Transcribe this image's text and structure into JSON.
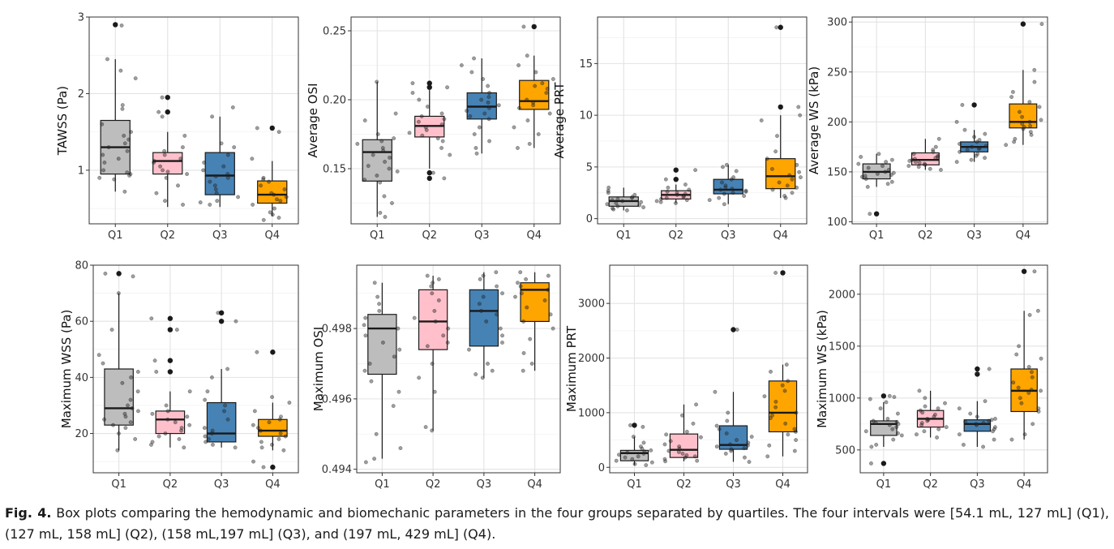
{
  "caption": {
    "label": "Fig. 4.",
    "text": "Box plots comparing the hemodynamic and biomechanic parameters in the four groups separated by quartiles. The four intervals were [54.1 mL, 127 mL] (Q1), (127 mL, 158 mL] (Q2), (158 mL,197 mL] (Q3), and (197 mL, 429 mL] (Q4)."
  },
  "colors": {
    "Q1": "#bdbdbd",
    "Q2": "#ffc0cb",
    "Q3": "#4682b4",
    "Q4": "#ffa500"
  },
  "chart_data": [
    {
      "type": "box",
      "ylabel": "TAWSS (Pa)",
      "categories": [
        "Q1",
        "Q2",
        "Q3",
        "Q4"
      ],
      "ylim": [
        0.3,
        3.0
      ],
      "yticks": [
        1,
        2,
        3
      ],
      "grid": true,
      "boxes": [
        {
          "min": 0.72,
          "q1": 0.95,
          "median": 1.3,
          "q3": 1.65,
          "max": 2.45,
          "outliers": [
            2.9
          ]
        },
        {
          "min": 0.52,
          "q1": 0.95,
          "median": 1.12,
          "q3": 1.23,
          "max": 1.5,
          "outliers": [
            1.95,
            1.76
          ]
        },
        {
          "min": 0.52,
          "q1": 0.68,
          "median": 0.93,
          "q3": 1.23,
          "max": 1.7,
          "outliers": []
        },
        {
          "min": 0.4,
          "q1": 0.57,
          "median": 0.68,
          "q3": 0.86,
          "max": 1.12,
          "outliers": [
            1.55
          ]
        }
      ],
      "points": [
        [
          2.89,
          2.45,
          2.3,
          2.2,
          1.85,
          1.8,
          1.6,
          1.5,
          1.45,
          1.4,
          1.35,
          1.3,
          1.25,
          1.2,
          1.15,
          1.1,
          1.0,
          0.97,
          0.95,
          0.93,
          0.9,
          0.88,
          0.72
        ],
        [
          1.95,
          1.76,
          1.7,
          1.45,
          1.3,
          1.25,
          1.2,
          1.15,
          1.12,
          1.1,
          1.05,
          1.0,
          0.98,
          0.95,
          0.9,
          0.8,
          0.7,
          0.6,
          0.55
        ],
        [
          1.82,
          1.7,
          1.35,
          1.3,
          1.2,
          1.1,
          1.05,
          1.0,
          0.95,
          0.92,
          0.9,
          0.85,
          0.8,
          0.75,
          0.7,
          0.65,
          0.6,
          0.58,
          0.55
        ],
        [
          1.55,
          1.5,
          1.15,
          0.9,
          0.88,
          0.85,
          0.8,
          0.75,
          0.7,
          0.68,
          0.65,
          0.62,
          0.6,
          0.55,
          0.5,
          0.45,
          0.42,
          0.38,
          0.35
        ]
      ]
    },
    {
      "type": "box",
      "ylabel": "Average OSI",
      "categories": [
        "Q1",
        "Q2",
        "Q3",
        "Q4"
      ],
      "ylim": [
        0.11,
        0.26
      ],
      "yticks": [
        0.15,
        0.2,
        0.25
      ],
      "tick_format": "2",
      "grid": true,
      "boxes": [
        {
          "min": 0.115,
          "q1": 0.141,
          "median": 0.162,
          "q3": 0.171,
          "max": 0.213,
          "outliers": []
        },
        {
          "min": 0.15,
          "q1": 0.173,
          "median": 0.181,
          "q3": 0.188,
          "max": 0.207,
          "outliers": [
            0.212,
            0.209,
            0.147,
            0.143
          ]
        },
        {
          "min": 0.161,
          "q1": 0.186,
          "median": 0.195,
          "q3": 0.205,
          "max": 0.23,
          "outliers": []
        },
        {
          "min": 0.165,
          "q1": 0.193,
          "median": 0.199,
          "q3": 0.214,
          "max": 0.232,
          "outliers": [
            0.253
          ]
        }
      ],
      "points": [
        [
          0.213,
          0.19,
          0.185,
          0.175,
          0.172,
          0.17,
          0.168,
          0.165,
          0.163,
          0.16,
          0.158,
          0.155,
          0.152,
          0.15,
          0.148,
          0.145,
          0.142,
          0.14,
          0.13,
          0.125,
          0.118,
          0.115
        ],
        [
          0.212,
          0.209,
          0.205,
          0.2,
          0.195,
          0.19,
          0.188,
          0.186,
          0.184,
          0.182,
          0.18,
          0.178,
          0.176,
          0.174,
          0.172,
          0.17,
          0.165,
          0.16,
          0.147,
          0.143
        ],
        [
          0.23,
          0.225,
          0.22,
          0.215,
          0.21,
          0.205,
          0.202,
          0.2,
          0.198,
          0.196,
          0.194,
          0.192,
          0.19,
          0.188,
          0.186,
          0.18,
          0.175,
          0.17,
          0.165,
          0.161
        ],
        [
          0.253,
          0.232,
          0.225,
          0.22,
          0.215,
          0.212,
          0.21,
          0.208,
          0.205,
          0.2,
          0.198,
          0.196,
          0.194,
          0.19,
          0.185,
          0.18,
          0.175,
          0.168,
          0.165
        ]
      ]
    },
    {
      "type": "box",
      "ylabel": "Average PRT",
      "categories": [
        "Q1",
        "Q2",
        "Q3",
        "Q4"
      ],
      "ylim": [
        -0.5,
        19.5
      ],
      "yticks": [
        0,
        5,
        10,
        15
      ],
      "grid": true,
      "boxes": [
        {
          "min": 0.8,
          "q1": 1.2,
          "median": 1.7,
          "q3": 2.1,
          "max": 3.0,
          "outliers": []
        },
        {
          "min": 1.5,
          "q1": 1.9,
          "median": 2.3,
          "q3": 2.7,
          "max": 3.3,
          "outliers": [
            4.7,
            3.8
          ]
        },
        {
          "min": 1.4,
          "q1": 2.4,
          "median": 2.8,
          "q3": 3.8,
          "max": 5.2,
          "outliers": []
        },
        {
          "min": 2.0,
          "q1": 2.9,
          "median": 4.1,
          "q3": 5.8,
          "max": 10.0,
          "outliers": [
            18.5,
            10.8
          ]
        }
      ],
      "points": [
        [
          3.0,
          2.7,
          2.5,
          2.3,
          2.1,
          2.0,
          1.9,
          1.8,
          1.7,
          1.6,
          1.5,
          1.4,
          1.3,
          1.2,
          1.1,
          1.0,
          0.9,
          0.8
        ],
        [
          4.7,
          3.8,
          3.3,
          3.0,
          2.8,
          2.6,
          2.5,
          2.4,
          2.3,
          2.2,
          2.1,
          2.0,
          1.9,
          1.8,
          1.7,
          1.6,
          1.5
        ],
        [
          5.2,
          5.0,
          4.6,
          4.0,
          3.8,
          3.5,
          3.2,
          3.0,
          2.9,
          2.8,
          2.7,
          2.6,
          2.5,
          2.4,
          2.2,
          2.0,
          1.8,
          1.4
        ],
        [
          18.5,
          10.8,
          10.0,
          9.5,
          8.0,
          6.5,
          5.8,
          5.2,
          4.8,
          4.5,
          4.2,
          4.0,
          3.8,
          3.5,
          3.2,
          3.0,
          2.8,
          2.5,
          2.2,
          2.0
        ]
      ]
    },
    {
      "type": "box",
      "ylabel": "Average WS (kPa)",
      "categories": [
        "Q1",
        "Q2",
        "Q3",
        "Q4"
      ],
      "ylim": [
        98,
        305
      ],
      "yticks": [
        100,
        150,
        200,
        250,
        300
      ],
      "grid": true,
      "boxes": [
        {
          "min": 135,
          "q1": 143,
          "median": 150,
          "q3": 158,
          "max": 168,
          "outliers": [
            108
          ]
        },
        {
          "min": 152,
          "q1": 157,
          "median": 162,
          "q3": 169,
          "max": 183,
          "outliers": []
        },
        {
          "min": 160,
          "q1": 170,
          "median": 175,
          "q3": 180,
          "max": 192,
          "outliers": [
            217
          ]
        },
        {
          "min": 177,
          "q1": 194,
          "median": 200,
          "q3": 218,
          "max": 252,
          "outliers": [
            298
          ]
        }
      ],
      "points": [
        [
          168,
          165,
          162,
          160,
          158,
          156,
          154,
          152,
          150,
          149,
          148,
          147,
          146,
          145,
          143,
          140,
          138,
          135,
          108
        ],
        [
          183,
          175,
          172,
          170,
          168,
          166,
          165,
          164,
          163,
          162,
          161,
          160,
          159,
          158,
          157,
          156,
          155,
          153,
          152
        ],
        [
          217,
          200,
          192,
          188,
          185,
          182,
          180,
          178,
          176,
          175,
          174,
          173,
          172,
          170,
          168,
          166,
          164,
          162,
          160
        ],
        [
          298,
          252,
          240,
          230,
          225,
          220,
          215,
          210,
          205,
          202,
          200,
          198,
          196,
          195,
          193,
          190,
          187,
          183,
          180,
          177
        ]
      ]
    },
    {
      "type": "box",
      "ylabel": "Maximum WSS (Pa)",
      "categories": [
        "Q1",
        "Q2",
        "Q3",
        "Q4"
      ],
      "ylim": [
        6,
        80
      ],
      "yticks": [
        20,
        40,
        60,
        80
      ],
      "grid": true,
      "boxes": [
        {
          "min": 14,
          "q1": 23,
          "median": 29,
          "q3": 43,
          "max": 70,
          "outliers": [
            77
          ]
        },
        {
          "min": 15,
          "q1": 20,
          "median": 25,
          "q3": 28,
          "max": 35,
          "outliers": [
            61,
            57,
            46,
            42
          ]
        },
        {
          "min": 15,
          "q1": 17,
          "median": 20,
          "q3": 31,
          "max": 43,
          "outliers": [
            63,
            60
          ]
        },
        {
          "min": 14,
          "q1": 19,
          "median": 21,
          "q3": 25,
          "max": 31,
          "outliers": [
            49,
            8
          ]
        }
      ],
      "points": [
        [
          77,
          76,
          70,
          57,
          48,
          45,
          42,
          40,
          38,
          35,
          32,
          30,
          29,
          28,
          27,
          26,
          25,
          24,
          23,
          22,
          20,
          18,
          14
        ],
        [
          61,
          57,
          46,
          42,
          35,
          30,
          28,
          27,
          26,
          25,
          24,
          23,
          22,
          21,
          20,
          19,
          18,
          17,
          16,
          15
        ],
        [
          63,
          60,
          43,
          40,
          35,
          32,
          30,
          28,
          25,
          22,
          21,
          20,
          19,
          18,
          17,
          16,
          15
        ],
        [
          49,
          33,
          31,
          28,
          26,
          25,
          24,
          23,
          22,
          21,
          20,
          19,
          18,
          17,
          16,
          15,
          14,
          10,
          8
        ]
      ]
    },
    {
      "type": "box",
      "ylabel": "Maximum OSI",
      "categories": [
        "Q1",
        "Q2",
        "Q3",
        "Q4"
      ],
      "ylim": [
        0.4939,
        0.4998
      ],
      "yticks": [
        0.494,
        0.496,
        0.498
      ],
      "tick_format": "3",
      "grid": true,
      "boxes": [
        {
          "min": 0.4943,
          "q1": 0.4967,
          "median": 0.498,
          "q3": 0.4984,
          "max": 0.4993,
          "outliers": []
        },
        {
          "min": 0.4951,
          "q1": 0.4974,
          "median": 0.4982,
          "q3": 0.4991,
          "max": 0.4995,
          "outliers": []
        },
        {
          "min": 0.4966,
          "q1": 0.4975,
          "median": 0.4985,
          "q3": 0.4991,
          "max": 0.4996,
          "outliers": []
        },
        {
          "min": 0.4968,
          "q1": 0.4982,
          "median": 0.4991,
          "q3": 0.4993,
          "max": 0.4996,
          "outliers": []
        }
      ],
      "points": [
        [
          0.4993,
          0.4989,
          0.4987,
          0.4985,
          0.4983,
          0.4981,
          0.498,
          0.4978,
          0.4976,
          0.4974,
          0.4972,
          0.497,
          0.4968,
          0.4965,
          0.4962,
          0.4958,
          0.495,
          0.4946,
          0.4943,
          0.4942
        ],
        [
          0.4995,
          0.4994,
          0.4993,
          0.4992,
          0.499,
          0.4988,
          0.4985,
          0.4983,
          0.4982,
          0.498,
          0.4978,
          0.4976,
          0.4975,
          0.497,
          0.4966,
          0.4962,
          0.4952,
          0.4951
        ],
        [
          0.4996,
          0.4995,
          0.4994,
          0.4992,
          0.499,
          0.4989,
          0.4987,
          0.4985,
          0.4984,
          0.4982,
          0.498,
          0.4978,
          0.4976,
          0.4974,
          0.497,
          0.4968,
          0.4967,
          0.4966
        ],
        [
          0.4996,
          0.4995,
          0.4994,
          0.4993,
          0.4992,
          0.4991,
          0.499,
          0.4989,
          0.4988,
          0.4986,
          0.4984,
          0.4982,
          0.498,
          0.4977,
          0.4973,
          0.497,
          0.4968
        ]
      ]
    },
    {
      "type": "box",
      "ylabel": "Maximum PRT",
      "categories": [
        "Q1",
        "Q2",
        "Q3",
        "Q4"
      ],
      "ylim": [
        -100,
        3700
      ],
      "yticks": [
        0,
        1000,
        2000,
        3000
      ],
      "grid": true,
      "boxes": [
        {
          "min": 40,
          "q1": 120,
          "median": 260,
          "q3": 310,
          "max": 560,
          "outliers": [
            770
          ]
        },
        {
          "min": 110,
          "q1": 180,
          "median": 320,
          "q3": 610,
          "max": 1150,
          "outliers": []
        },
        {
          "min": 100,
          "q1": 330,
          "median": 410,
          "q3": 760,
          "max": 1380,
          "outliers": [
            2520
          ]
        },
        {
          "min": 200,
          "q1": 650,
          "median": 1000,
          "q3": 1580,
          "max": 1880,
          "outliers": [
            3560
          ]
        }
      ],
      "points": [
        [
          770,
          740,
          560,
          450,
          380,
          340,
          310,
          290,
          270,
          250,
          230,
          200,
          180,
          150,
          120,
          90,
          60,
          40
        ],
        [
          1150,
          950,
          800,
          650,
          600,
          550,
          480,
          420,
          380,
          340,
          300,
          280,
          250,
          220,
          200,
          180,
          150,
          120,
          110
        ],
        [
          2520,
          1380,
          1000,
          850,
          760,
          700,
          620,
          560,
          500,
          450,
          420,
          400,
          380,
          350,
          330,
          300,
          250,
          180,
          100
        ],
        [
          3560,
          1880,
          1750,
          1580,
          1500,
          1400,
          1300,
          1200,
          1100,
          1000,
          950,
          900,
          800,
          700,
          650,
          600,
          500,
          400,
          300,
          200
        ]
      ]
    },
    {
      "type": "box",
      "ylabel": "Maximum WS (kPa)",
      "categories": [
        "Q1",
        "Q2",
        "Q3",
        "Q4"
      ],
      "ylim": [
        280,
        2280
      ],
      "yticks": [
        500,
        1000,
        1500,
        2000
      ],
      "grid": true,
      "boxes": [
        {
          "min": 530,
          "q1": 640,
          "median": 750,
          "q3": 780,
          "max": 960,
          "outliers": [
            1020,
            370
          ]
        },
        {
          "min": 620,
          "q1": 720,
          "median": 800,
          "q3": 880,
          "max": 1070,
          "outliers": []
        },
        {
          "min": 530,
          "q1": 680,
          "median": 750,
          "q3": 790,
          "max": 970,
          "outliers": [
            1280,
            1230
          ]
        },
        {
          "min": 600,
          "q1": 870,
          "median": 1070,
          "q3": 1280,
          "max": 1840,
          "outliers": [
            2220
          ]
        }
      ],
      "points": [
        [
          1020,
          1010,
          990,
          960,
          900,
          850,
          800,
          780,
          770,
          760,
          750,
          740,
          720,
          700,
          680,
          660,
          640,
          600,
          550,
          530,
          370
        ],
        [
          1070,
          1000,
          950,
          920,
          900,
          880,
          860,
          840,
          820,
          800,
          790,
          780,
          760,
          740,
          720,
          700,
          680,
          650,
          620
        ],
        [
          1280,
          1230,
          970,
          900,
          850,
          820,
          800,
          790,
          780,
          770,
          760,
          750,
          740,
          720,
          700,
          680,
          650,
          600,
          550,
          530
        ],
        [
          2220,
          1840,
          1800,
          1500,
          1420,
          1380,
          1300,
          1250,
          1200,
          1150,
          1100,
          1080,
          1070,
          1050,
          1000,
          950,
          900,
          870,
          750,
          650,
          600
        ]
      ]
    }
  ]
}
